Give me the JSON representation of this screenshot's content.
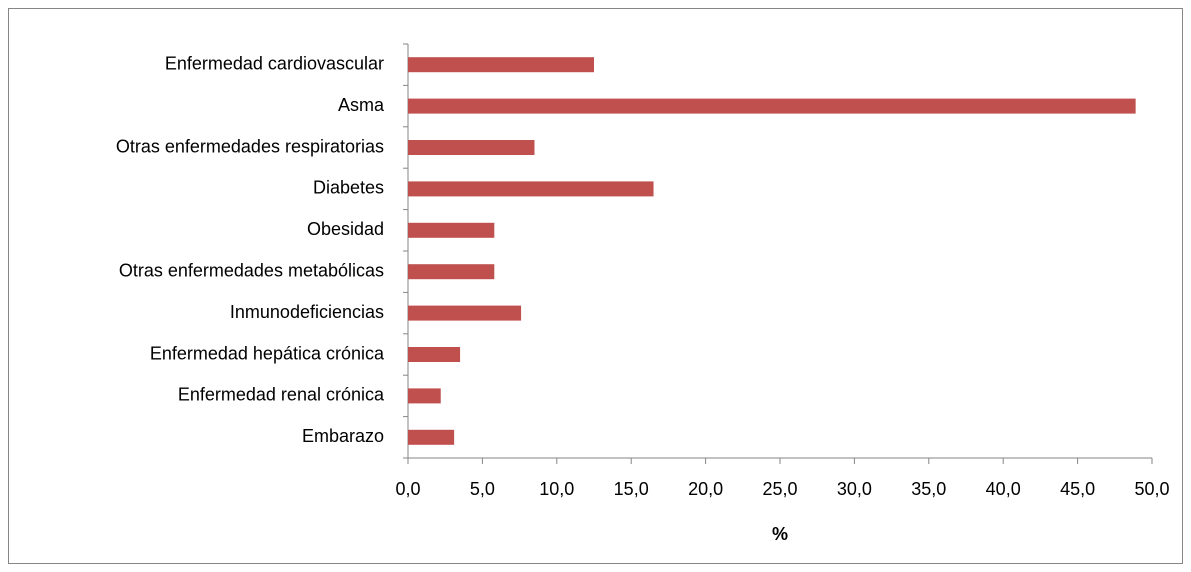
{
  "chart_data": {
    "type": "bar",
    "orientation": "horizontal",
    "x_label": "%",
    "categories": [
      "Enfermedad cardiovascular",
      "Asma",
      "Otras enfermedades respiratorias",
      "Diabetes",
      "Obesidad",
      "Otras enfermedades metabólicas",
      "Inmunodeficiencias",
      "Enfermedad hepática crónica",
      "Enfermedad renal crónica",
      "Embarazo"
    ],
    "values": [
      12.5,
      48.9,
      8.5,
      16.5,
      5.8,
      5.8,
      7.6,
      3.5,
      2.2,
      3.1
    ],
    "color": "#c0504d",
    "xlim": [
      0,
      50
    ],
    "xticks": [
      {
        "value": 0,
        "label": "0,0"
      },
      {
        "value": 5,
        "label": "5,0"
      },
      {
        "value": 10,
        "label": "10,0"
      },
      {
        "value": 15,
        "label": "15,0"
      },
      {
        "value": 20,
        "label": "20,0"
      },
      {
        "value": 25,
        "label": "25,0"
      },
      {
        "value": 30,
        "label": "30,0"
      },
      {
        "value": 35,
        "label": "35,0"
      },
      {
        "value": 40,
        "label": "40,0"
      },
      {
        "value": 45,
        "label": "45,0"
      },
      {
        "value": 50,
        "label": "50,0"
      }
    ],
    "grid": false
  }
}
